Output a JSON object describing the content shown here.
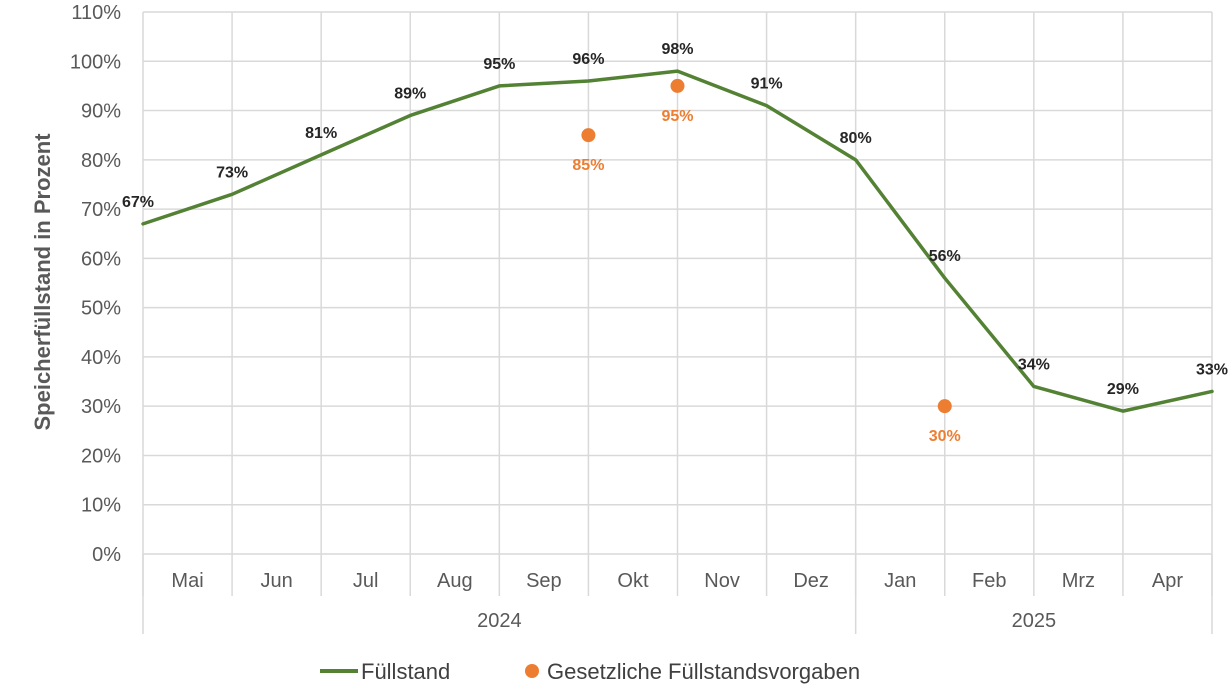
{
  "chart_data": {
    "type": "line",
    "title": "",
    "xlabel": "",
    "ylabel": "Speicherfüllstand in Prozent",
    "ylim": [
      0,
      110
    ],
    "y_ticks": [
      "0%",
      "10%",
      "20%",
      "30%",
      "40%",
      "50%",
      "60%",
      "70%",
      "80%",
      "90%",
      "100%",
      "110%"
    ],
    "categories": [
      "Mai",
      "Jun",
      "Jul",
      "Aug",
      "Sep",
      "Okt",
      "Nov",
      "Dez",
      "Jan",
      "Feb",
      "Mrz",
      "Apr"
    ],
    "year_groups": [
      {
        "label": "2024",
        "months": 8
      },
      {
        "label": "2025",
        "months": 4
      }
    ],
    "grid": true,
    "legend_position": "bottom",
    "series": [
      {
        "name": "Füllstand",
        "type": "line",
        "color": "#548235",
        "x": [
          0,
          1,
          2,
          3,
          4,
          5,
          6,
          7,
          8,
          9,
          10,
          11,
          12
        ],
        "values": [
          67,
          73,
          81,
          89,
          95,
          96,
          98,
          91,
          80,
          56,
          34,
          29,
          33
        ],
        "labels": [
          "67%",
          "73%",
          "81%",
          "89%",
          "95%",
          "96%",
          "98%",
          "91%",
          "80%",
          "56%",
          "34%",
          "29%",
          "33%"
        ]
      },
      {
        "name": "Gesetzliche Füllstandsvorgaben",
        "type": "scatter",
        "color": "#ED7D31",
        "x": [
          5,
          6,
          9
        ],
        "values": [
          85,
          95,
          30
        ],
        "labels": [
          "85%",
          "95%",
          "30%"
        ]
      }
    ]
  }
}
